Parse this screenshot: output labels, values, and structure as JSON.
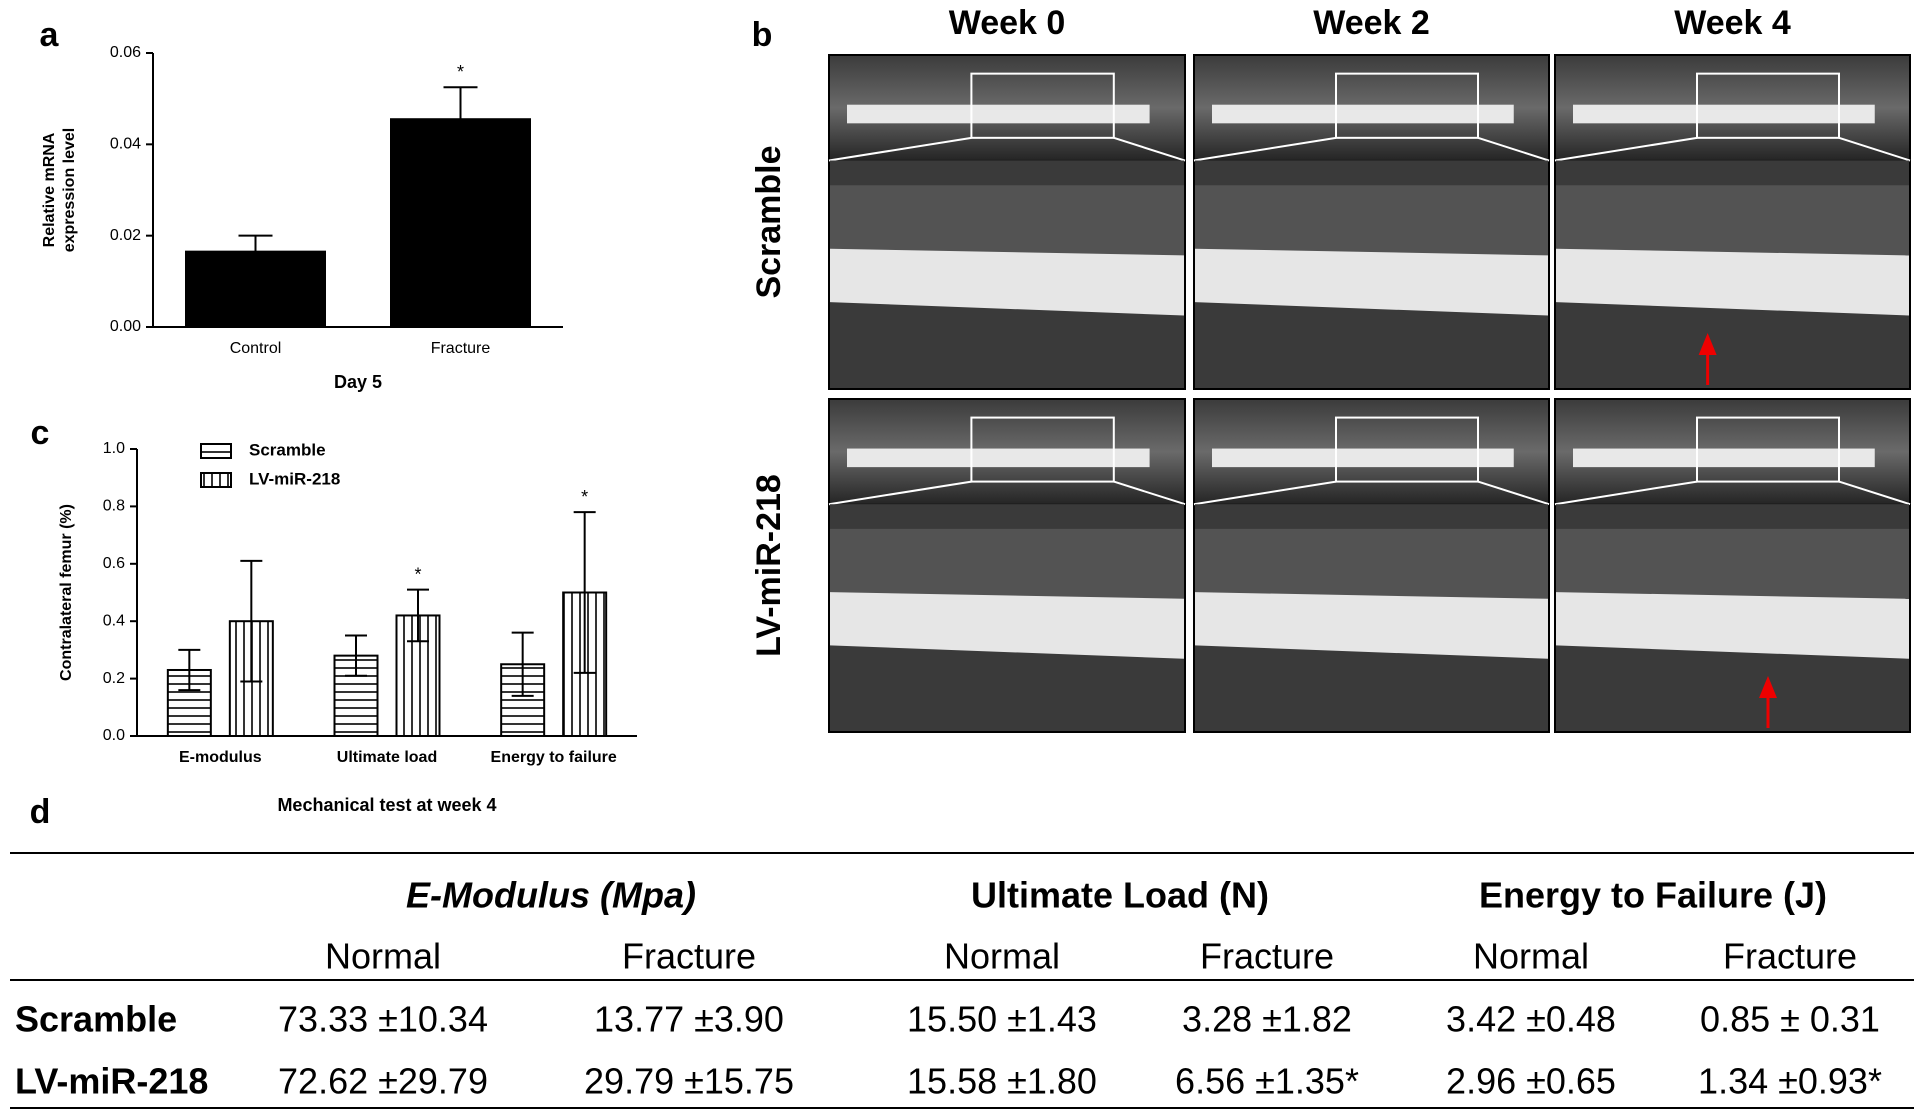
{
  "chart_data": [
    {
      "label": "a",
      "type": "bar",
      "ylabel": [
        "Relative mRNA",
        "expression level"
      ],
      "xlabel": "Day 5",
      "categories": [
        "Control",
        "Fracture"
      ],
      "values": [
        0.0165,
        0.0455
      ],
      "errors": [
        0.0035,
        0.007
      ],
      "error_bars": "up",
      "significance": [
        null,
        "*"
      ],
      "color": "#000000",
      "ylim": [
        0,
        0.06
      ],
      "yticks": [
        {
          "value": 0,
          "label": "0.00"
        },
        {
          "value": 0.02,
          "label": "0.02"
        },
        {
          "value": 0.04,
          "label": "0.04"
        },
        {
          "value": 0.06,
          "label": "0.06"
        }
      ]
    },
    {
      "label": "c",
      "type": "bar",
      "ylabel": "Contralateral femur (%)",
      "xlabel": "Mechanical test at week 4",
      "categories": [
        "E-modulus",
        "Ultimate load",
        "Energy to failure"
      ],
      "series": [
        {
          "name": "Scramble",
          "pattern": "horizontal",
          "values": [
            0.23,
            0.28,
            0.25
          ],
          "errors": [
            0.07,
            0.07,
            0.11
          ]
        },
        {
          "name": "LV-miR-218",
          "pattern": "vertical",
          "values": [
            0.4,
            0.42,
            0.5
          ],
          "errors": [
            0.21,
            0.09,
            0.28
          ],
          "significance": [
            null,
            "*",
            "*"
          ]
        }
      ],
      "error_bars": "both",
      "legend": "top-left",
      "ylim": [
        0,
        1
      ],
      "yticks": [
        {
          "value": 0,
          "label": "0.0"
        },
        {
          "value": 0.2,
          "label": "0.2"
        },
        {
          "value": 0.4,
          "label": "0.4"
        },
        {
          "value": 0.6,
          "label": "0.6"
        },
        {
          "value": 0.8,
          "label": "0.8"
        },
        {
          "value": 1,
          "label": "1.0"
        }
      ]
    }
  ],
  "radiographs": {
    "label": "b",
    "columns": [
      "Week 0",
      "Week 2",
      "Week 4"
    ],
    "rows": [
      "Scramble",
      "LV-miR-218"
    ]
  },
  "table": {
    "label": "d",
    "groups": [
      "E-Modulus (Mpa)",
      "Ultimate Load (N)",
      "Energy to Failure (J)"
    ],
    "subheaders": [
      "Normal",
      "Fracture",
      "Normal",
      "Fracture",
      "Normal",
      "Fracture"
    ],
    "rows": [
      [
        "Scramble",
        "73.33 ±10.34",
        "13.77 ±3.90",
        "15.50 ±1.43",
        "3.28 ±1.82",
        "3.42 ±0.48",
        "0.85 ± 0.31"
      ],
      [
        "LV-miR-218",
        "72.62 ±29.79",
        "29.79 ±15.75",
        "15.58 ±1.80",
        "6.56 ±1.35*",
        "2.96 ±0.65",
        "1.34 ±0.93*"
      ]
    ]
  }
}
